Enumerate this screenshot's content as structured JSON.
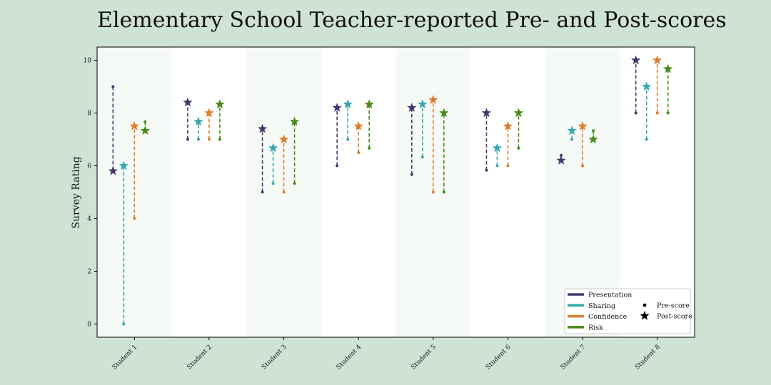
{
  "chart_data": {
    "type": "scatter",
    "title": "Elementary School Teacher-reported Pre- and Post-scores",
    "ylabel": "Survey Rating",
    "xlabel": "",
    "ylim": [
      -0.5,
      10.5
    ],
    "yticks": [
      0,
      2,
      4,
      6,
      8,
      10
    ],
    "categories": [
      "Student 1",
      "Student 2",
      "Student 3",
      "Student 4",
      "Student 5",
      "Student 6",
      "Student 7",
      "Student 8"
    ],
    "legend_position": "lower-right",
    "marker_legend": {
      "pre": "Pre-score",
      "post": "Post-score"
    },
    "series": [
      {
        "name": "Presentation",
        "color": "#46386e",
        "pre": [
          9,
          7,
          5,
          6,
          5.67,
          5.83,
          6.4,
          8
        ],
        "post": [
          5.8,
          8.4,
          7.4,
          8.2,
          8.2,
          8,
          6.2,
          10
        ]
      },
      {
        "name": "Sharing",
        "color": "#35a7ae",
        "pre": [
          0,
          7,
          5.33,
          7,
          6.33,
          6,
          7,
          7
        ],
        "post": [
          6,
          7.67,
          6.67,
          8.33,
          8.33,
          6.67,
          7.33,
          9
        ]
      },
      {
        "name": "Confidence",
        "color": "#df7c2c",
        "pre": [
          4,
          7,
          5,
          6.5,
          5,
          6,
          6,
          8
        ],
        "post": [
          7.5,
          8,
          7,
          7.5,
          8.5,
          7.5,
          7.5,
          10
        ]
      },
      {
        "name": "Risk",
        "color": "#4a8a17",
        "pre": [
          7.67,
          7,
          5.33,
          6.67,
          5,
          6.67,
          7.33,
          8
        ],
        "post": [
          7.33,
          8.33,
          7.67,
          8.33,
          8,
          8,
          7,
          9.67
        ]
      }
    ]
  }
}
